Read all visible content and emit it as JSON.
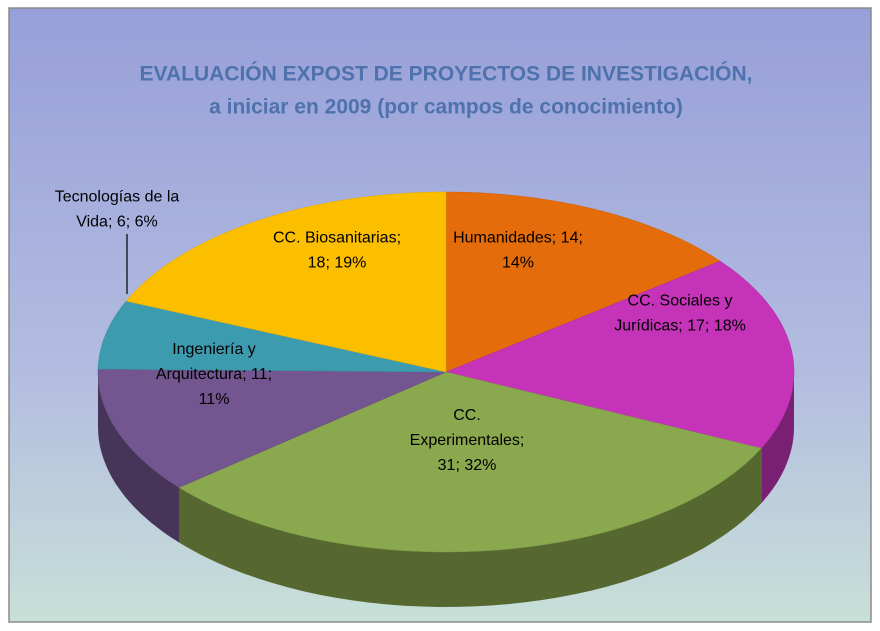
{
  "chart_data": {
    "type": "pie3d",
    "title": [
      "EVALUACIÓN EXPOST DE PROYECTOS DE INVESTIGACIÓN,",
      "a iniciar en 2009 (por campos de conocimiento)"
    ],
    "values": [
      14,
      17,
      31,
      11,
      6,
      18
    ],
    "value_labels": [
      "Humanidades; 14; 14%",
      "CC. Sociales y Jurídicas; 17; 18%",
      "CC. Experimentales; 31; 32%",
      "Ingeniería y Arquitectura; 11; 11%",
      "Tecnologías de la Vida; 6; 6%",
      "CC. Biosanitarias; 18; 19%"
    ],
    "colors": [
      "#e46c0a",
      "#c433b8",
      "#8aa84e",
      "#73558f",
      "#3d9bb0",
      "#fbbf00"
    ]
  }
}
